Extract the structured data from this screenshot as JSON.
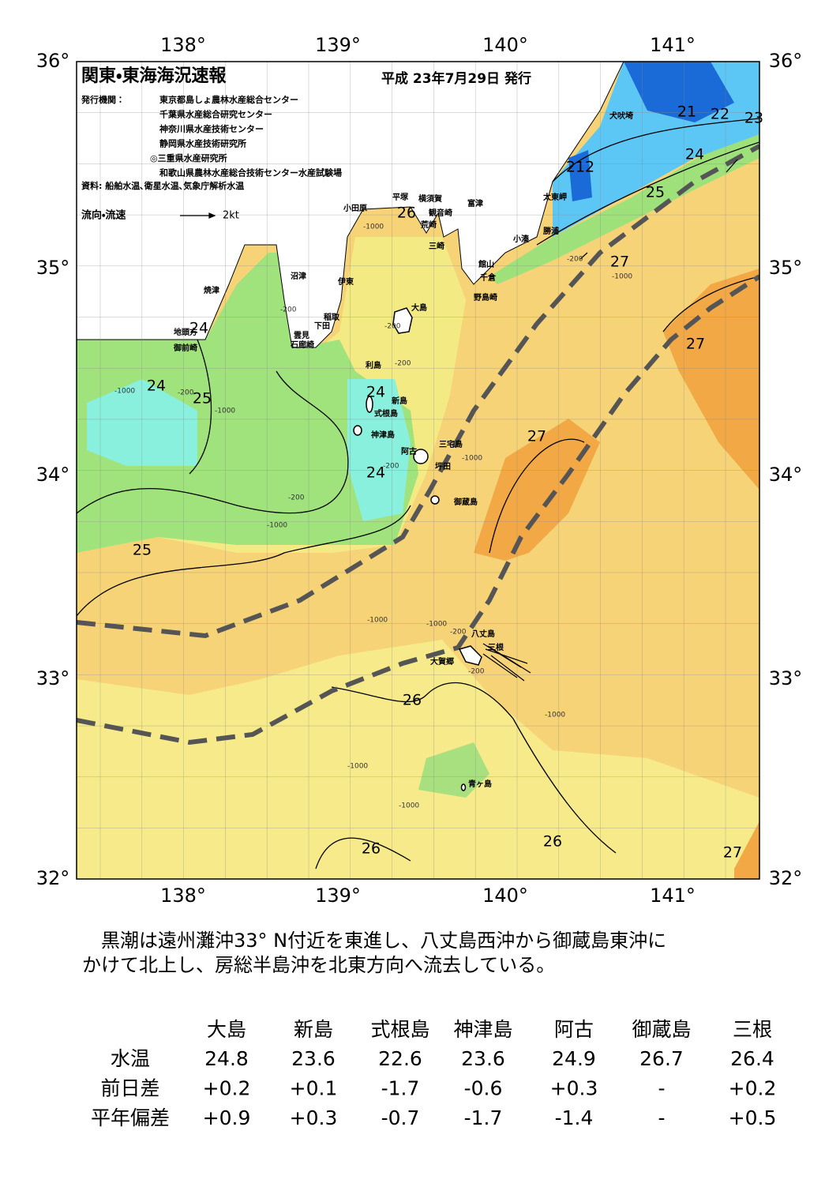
{
  "header": {
    "title": "関東・東海海況速報",
    "date": "平成 23年7月29日 発行",
    "publisher_label": "発行機関：",
    "publishers": [
      "東京都島しょ農林水産総合センター",
      "千葉県水産総合研究センター",
      "神奈川県水産技術センター",
      "静岡県水産技術研究所",
      "◎三重県水産研究所",
      "和歌山県農林水産総合技術センター水産試験場"
    ],
    "source": "資料: 船舶水温､衛星水温､気象庁解析水温",
    "legend_label": "流向・流速",
    "legend_scale": "2kt"
  },
  "map": {
    "lon_labels": [
      "138°",
      "139°",
      "140°",
      "141°"
    ],
    "lat_labels": [
      "36°",
      "35°",
      "34°",
      "33°",
      "32°"
    ],
    "places": [
      "犬吠埼",
      "太東岬",
      "勝浦",
      "小湊",
      "館山",
      "千倉",
      "野島崎",
      "富津",
      "横須賀",
      "観音崎",
      "荒崎",
      "三崎",
      "平塚",
      "小田原",
      "沼津",
      "伊東",
      "焼津",
      "稲取",
      "下田",
      "雲見",
      "石廊崎",
      "大島",
      "地頭方",
      "御前崎",
      "利島",
      "新島",
      "式根島",
      "神津島",
      "三宅島",
      "阿古",
      "坪田",
      "御蔵島",
      "八丈島",
      "三根",
      "大賀郷",
      "青ヶ島"
    ],
    "contour_labels": [
      "21",
      "22",
      "23",
      "24",
      "25",
      "212",
      "26",
      "27",
      "24",
      "24",
      "25",
      "24",
      "24",
      "27",
      "27",
      "25",
      "26",
      "26",
      "26",
      "27"
    ],
    "depth_labels": [
      "-1000",
      "-200",
      "-200",
      "-1000",
      "-200",
      "-200",
      "-1000",
      "-200",
      "-1000",
      "-200",
      "-1000",
      "-1000",
      "-200",
      "-1000",
      "-1000",
      "-1000",
      "-200",
      "-1000",
      "-1000",
      "-200"
    ]
  },
  "summary": [
    "黒潮は遠州灘沖33° N付近を東進し、八丈島西沖から御蔵島東沖に",
    "かけて北上し、房総半島沖を北東方向へ流去している。"
  ],
  "table": {
    "columns": [
      "大島",
      "新島",
      "式根島",
      "神津島",
      "阿古",
      "御蔵島",
      "三根"
    ],
    "rows": [
      {
        "label": "水温",
        "cells": [
          "24.8",
          "23.6",
          "22.6",
          "23.6",
          "24.9",
          "26.7",
          "26.4"
        ]
      },
      {
        "label": "前日差",
        "cells": [
          "+0.2",
          "+0.1",
          "-1.7",
          "-0.6",
          "+0.3",
          "-",
          "+0.2"
        ]
      },
      {
        "label": "平年偏差",
        "cells": [
          "+0.9",
          "+0.3",
          "-0.7",
          "-1.7",
          "-1.4",
          "-",
          "+0.5"
        ]
      }
    ]
  }
}
